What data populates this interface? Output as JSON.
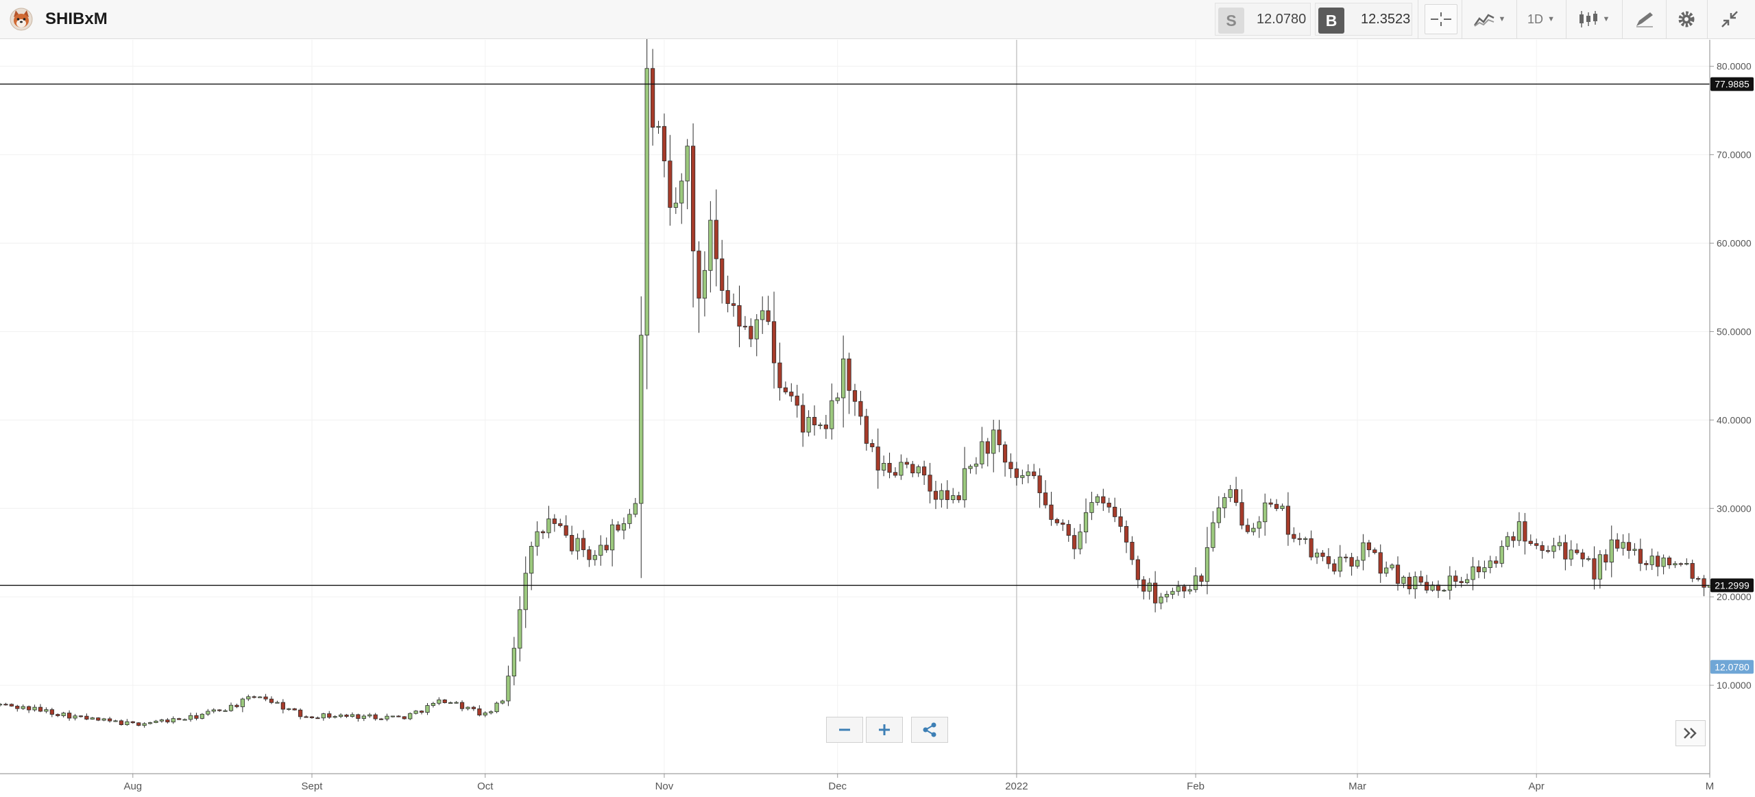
{
  "header": {
    "symbol": "SHIBxM",
    "sell_label": "S",
    "sell_price": "12.0780",
    "buy_label": "B",
    "buy_price": "12.3523",
    "interval": "1D"
  },
  "icons": [
    "shiba-logo-icon",
    "crosshair-icon",
    "indicators-icon",
    "candlestick-icon",
    "drawing-tool-icon",
    "gear-icon",
    "collapse-icon",
    "zoom-out-icon",
    "zoom-in-icon",
    "share-icon",
    "scroll-to-end-icon"
  ],
  "colors": {
    "up": "#9cc97e",
    "down": "#a63b2a",
    "wick": "#2b2b2b",
    "current_price_marker": "#6fa6d6",
    "line_marker": "#111111"
  },
  "chart_data": {
    "type": "candlestick",
    "ylim": [
      0,
      83
    ],
    "y_ticks": [
      "10.0000",
      "20.0000",
      "30.0000",
      "40.0000",
      "50.0000",
      "60.0000",
      "70.0000",
      "80.0000"
    ],
    "y_tick_values": [
      10,
      20,
      30,
      40,
      50,
      60,
      70,
      80
    ],
    "x_ticks": [
      "Aug",
      "Sept",
      "Oct",
      "Nov",
      "Dec",
      "2022",
      "Feb",
      "Mar",
      "Apr",
      "M"
    ],
    "x_tick_days": [
      16,
      47,
      77,
      108,
      138,
      169,
      200,
      228,
      259,
      289
    ],
    "x_range_days": [
      -7,
      289
    ],
    "horizontal_lines": [
      {
        "value": 77.9885,
        "label": "77.9885"
      },
      {
        "value": 21.2999,
        "label": "21.2999"
      }
    ],
    "current_price": {
      "value": 12.078,
      "label": "12.0780"
    },
    "vertical_line_day": 169,
    "close_points": [
      [
        -7,
        7.8
      ],
      [
        0,
        7.2
      ],
      [
        8,
        6.2
      ],
      [
        16,
        5.6
      ],
      [
        26,
        6.3
      ],
      [
        33,
        7.6
      ],
      [
        38,
        8.9
      ],
      [
        45,
        6.6
      ],
      [
        55,
        6.5
      ],
      [
        63,
        6.4
      ],
      [
        70,
        8.4
      ],
      [
        77,
        6.6
      ],
      [
        80,
        8.2
      ],
      [
        82,
        14.5
      ],
      [
        84,
        23.5
      ],
      [
        86,
        26.5
      ],
      [
        88,
        28.5
      ],
      [
        92,
        26.0
      ],
      [
        96,
        24.5
      ],
      [
        100,
        27.8
      ],
      [
        103,
        30.8
      ],
      [
        104,
        50.0
      ],
      [
        105,
        77.9
      ],
      [
        107,
        71.0
      ],
      [
        109,
        62.0
      ],
      [
        111,
        66.0
      ],
      [
        112,
        70.5
      ],
      [
        114,
        52.0
      ],
      [
        116,
        63.5
      ],
      [
        118,
        57.0
      ],
      [
        121,
        50.0
      ],
      [
        125,
        52.5
      ],
      [
        128,
        44.5
      ],
      [
        131,
        41.0
      ],
      [
        134,
        38.0
      ],
      [
        137,
        40.5
      ],
      [
        139,
        46.5
      ],
      [
        141,
        41.0
      ],
      [
        144,
        35.5
      ],
      [
        147,
        34.0
      ],
      [
        150,
        36.0
      ],
      [
        153,
        32.5
      ],
      [
        158,
        30.5
      ],
      [
        162,
        36.0
      ],
      [
        165,
        38.0
      ],
      [
        167,
        34.0
      ],
      [
        172,
        32.5
      ],
      [
        176,
        28.0
      ],
      [
        179,
        26.0
      ],
      [
        181,
        30.5
      ],
      [
        185,
        30.0
      ],
      [
        188,
        26.5
      ],
      [
        190,
        22.0
      ],
      [
        193,
        20.2
      ],
      [
        197,
        21.0
      ],
      [
        201,
        22.0
      ],
      [
        203,
        29.0
      ],
      [
        206,
        31.0
      ],
      [
        209,
        28.5
      ],
      [
        212,
        30.0
      ],
      [
        215,
        29.0
      ],
      [
        219,
        25.5
      ],
      [
        222,
        24.0
      ],
      [
        226,
        23.5
      ],
      [
        229,
        25.5
      ],
      [
        232,
        23.5
      ],
      [
        236,
        22.0
      ],
      [
        240,
        21.5
      ],
      [
        244,
        21.6
      ],
      [
        248,
        23.0
      ],
      [
        252,
        24.0
      ],
      [
        256,
        28.0
      ],
      [
        259,
        26.5
      ],
      [
        263,
        26.0
      ],
      [
        266,
        24.0
      ],
      [
        269,
        23.0
      ],
      [
        272,
        25.5
      ],
      [
        276,
        25.0
      ],
      [
        280,
        24.0
      ],
      [
        284,
        24.5
      ],
      [
        287,
        22.0
      ],
      [
        289,
        21.3
      ]
    ]
  }
}
